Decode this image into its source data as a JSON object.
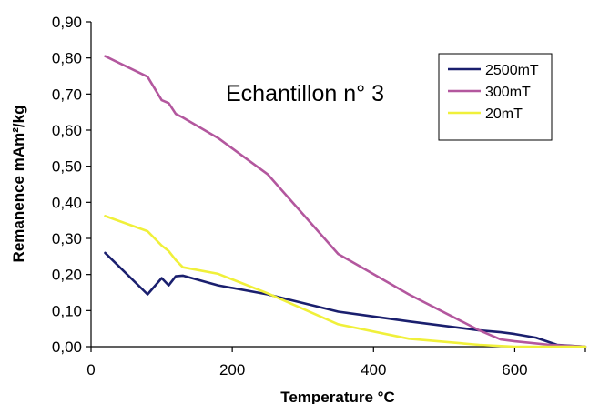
{
  "chart_data": {
    "type": "line",
    "title": "",
    "xlabel": "Temperature °C",
    "ylabel": "Remanence mAm²/kg",
    "xlim": [
      0,
      700
    ],
    "ylim": [
      0,
      0.9
    ],
    "x_ticks": [
      0,
      200,
      400,
      600
    ],
    "x_tick_labels": [
      "0",
      "200",
      "400",
      "600"
    ],
    "y_ticks": [
      0,
      0.1,
      0.2,
      0.3,
      0.4,
      0.5,
      0.6,
      0.7,
      0.8,
      0.9
    ],
    "y_tick_labels": [
      "0,00",
      "0,10",
      "0,20",
      "0,30",
      "0,40",
      "0,50",
      "0,60",
      "0,70",
      "0,80",
      "0,90"
    ],
    "grid": false,
    "legend_position": "top-right",
    "annotation": "Echantillon n° 3",
    "series": [
      {
        "name": "2500mT",
        "color": "#1a1f6e",
        "x": [
          20,
          80,
          100,
          110,
          120,
          130,
          180,
          250,
          350,
          450,
          550,
          580,
          600,
          630,
          660,
          700
        ],
        "y": [
          0.26,
          0.145,
          0.19,
          0.17,
          0.195,
          0.197,
          0.17,
          0.145,
          0.097,
          0.07,
          0.045,
          0.04,
          0.035,
          0.025,
          0.005,
          0.0
        ]
      },
      {
        "name": "300mT",
        "color": "#b3579e",
        "x": [
          20,
          80,
          100,
          110,
          120,
          130,
          180,
          250,
          350,
          450,
          550,
          580,
          600,
          650,
          700
        ],
        "y": [
          0.805,
          0.748,
          0.683,
          0.675,
          0.645,
          0.635,
          0.578,
          0.478,
          0.257,
          0.145,
          0.045,
          0.02,
          0.015,
          0.005,
          0.0
        ]
      },
      {
        "name": "20mT",
        "color": "#f0f03a",
        "x": [
          20,
          80,
          100,
          110,
          120,
          130,
          180,
          250,
          350,
          450,
          550,
          600,
          700
        ],
        "y": [
          0.362,
          0.32,
          0.28,
          0.265,
          0.24,
          0.22,
          0.202,
          0.148,
          0.062,
          0.022,
          0.005,
          0.0,
          0.0
        ]
      }
    ]
  }
}
